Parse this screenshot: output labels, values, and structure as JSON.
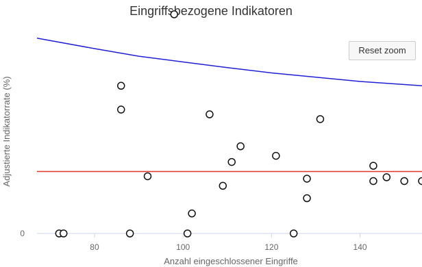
{
  "chart_data": {
    "type": "scatter",
    "title": "Eingriffsbezogene Indikatoren",
    "xlabel": "Anzahl eingeschlossener Eingriffe",
    "ylabel": "Adjustierte Indikatorrate (%)",
    "xlim": [
      67,
      154
    ],
    "ylim": [
      0,
      4.9
    ],
    "x_ticks": [
      80,
      100,
      120,
      140
    ],
    "y_ticks": [
      0
    ],
    "grid": false,
    "points": [
      {
        "x": 72,
        "y": 0
      },
      {
        "x": 73,
        "y": 0
      },
      {
        "x": 86,
        "y": 3.1
      },
      {
        "x": 86,
        "y": 2.6
      },
      {
        "x": 88,
        "y": 0
      },
      {
        "x": 92,
        "y": 1.2
      },
      {
        "x": 98,
        "y": 4.6
      },
      {
        "x": 101,
        "y": 0
      },
      {
        "x": 102,
        "y": 0.42
      },
      {
        "x": 106,
        "y": 2.5
      },
      {
        "x": 109,
        "y": 1.0
      },
      {
        "x": 111,
        "y": 1.5
      },
      {
        "x": 113,
        "y": 1.83
      },
      {
        "x": 121,
        "y": 1.63
      },
      {
        "x": 125,
        "y": 0
      },
      {
        "x": 128,
        "y": 1.15
      },
      {
        "x": 128,
        "y": 0.74
      },
      {
        "x": 131,
        "y": 2.4
      },
      {
        "x": 143,
        "y": 1.42
      },
      {
        "x": 143,
        "y": 1.1
      },
      {
        "x": 146,
        "y": 1.18
      },
      {
        "x": 150,
        "y": 1.1
      },
      {
        "x": 154,
        "y": 1.1
      }
    ],
    "reference_lines": [
      {
        "kind": "constant",
        "color": "#e8322a",
        "y": 1.3
      },
      {
        "kind": "curve",
        "color": "#1f1fd6",
        "points": [
          [
            67,
            4.1
          ],
          [
            80,
            3.88
          ],
          [
            90,
            3.72
          ],
          [
            100,
            3.6
          ],
          [
            110,
            3.48
          ],
          [
            120,
            3.37
          ],
          [
            130,
            3.28
          ],
          [
            140,
            3.19
          ],
          [
            154,
            3.1
          ]
        ]
      }
    ],
    "colors": {
      "marker_stroke": "#111111",
      "marker_fill": "#ffffff",
      "axis_line": "#ccd6eb"
    }
  },
  "controls": {
    "reset_zoom_label": "Reset zoom"
  }
}
